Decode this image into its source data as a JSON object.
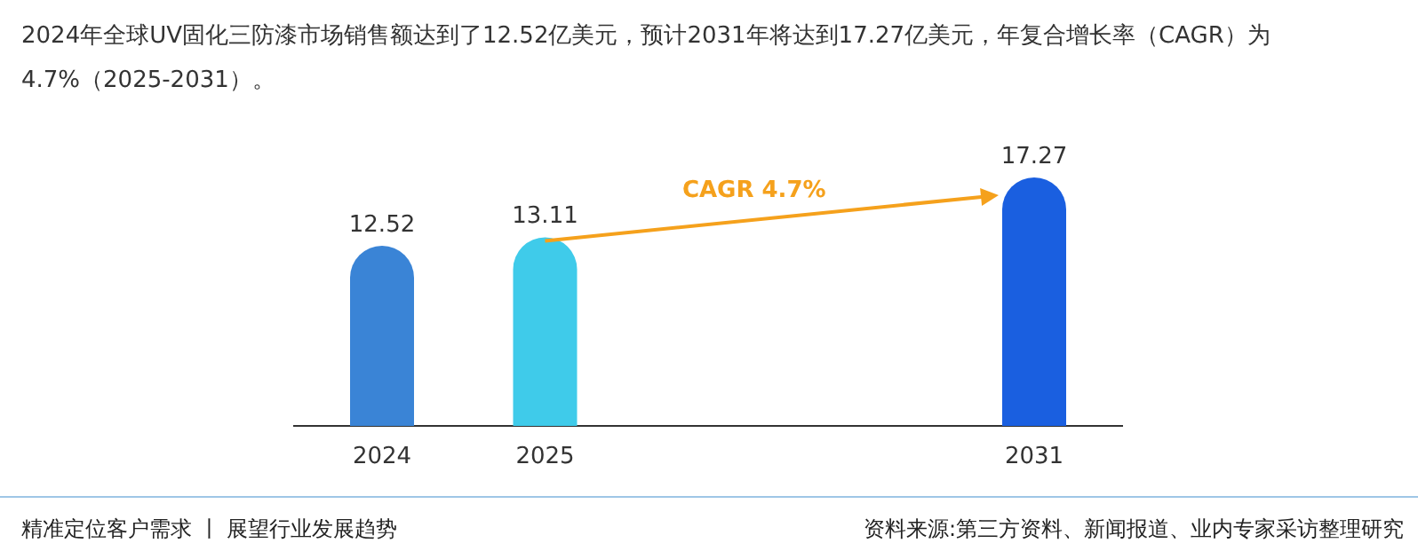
{
  "chart_data": {
    "type": "bar",
    "title": "2024年全球UV固化三防漆市场销售额达到了12.52亿美元，预计2031年将达到17.27亿美元，年复合增长率（CAGR）为4.7%（2025-2031）。",
    "categories": [
      "2024",
      "2025",
      null,
      null,
      "2031"
    ],
    "values": [
      12.52,
      13.11,
      null,
      null,
      17.27
    ],
    "colors": [
      "#3a84d6",
      "#3fcbea",
      null,
      null,
      "#1a5fe0"
    ],
    "data_labels": true,
    "annotations": [
      "CAGR 4.7%",
      "精准定位客户需求 丨 展望行业发展趋势",
      "资料来源:第三方资料、新闻报道、业内专家采访整理研究"
    ]
  }
}
